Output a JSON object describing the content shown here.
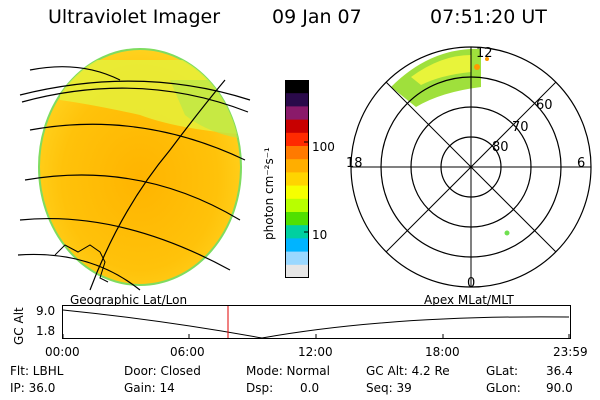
{
  "header": {
    "instrument": "Ultraviolet Imager",
    "date": "09 Jan 07",
    "time": "07:51:20 UT"
  },
  "colorbar": {
    "unit_label": "photon cm⁻²s⁻¹",
    "ticks": [
      "100",
      "10"
    ],
    "colors": [
      "#000000",
      "#2a0a4a",
      "#8a1a6a",
      "#c80000",
      "#ff2a00",
      "#ff7a00",
      "#ffae00",
      "#ffd400",
      "#f6ff00",
      "#b8ff00",
      "#50e000",
      "#00d0a0",
      "#00b4ff",
      "#9ad8ff",
      "#e6e6e6"
    ]
  },
  "polar_plot": {
    "mlt_labels": {
      "top": "12",
      "left": "18",
      "right": "6",
      "bottom": "0"
    },
    "lat_labels": [
      "60",
      "70",
      "80"
    ]
  },
  "projections": {
    "left": "Geographic Lat/Lon",
    "right": "Apex MLat/MLT"
  },
  "altitude_plot": {
    "ylabel": "GC Alt",
    "yticks": [
      "9.0",
      "1.8"
    ],
    "xticks": [
      "00:00",
      "06:00",
      "12:00",
      "18:00",
      "23:59"
    ]
  },
  "info": {
    "flt": "Flt: LBHL",
    "ip": "IP: 36.0",
    "door": "Door: Closed",
    "gain": "Gain: 14",
    "mode": "Mode: Normal",
    "dsp_label": "Dsp:",
    "dsp_value": "0.0",
    "gc_alt": "GC Alt: 4.2 Re",
    "seq": "Seq: 39",
    "glat_label": "GLat:",
    "glat_value": "36.4",
    "glon_label": "GLon:",
    "glon_value": "90.0"
  }
}
